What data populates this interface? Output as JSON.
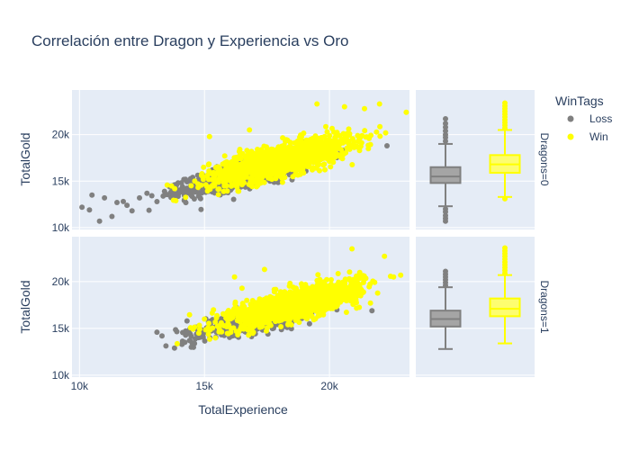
{
  "chart_data": {
    "type": "scatter",
    "title": "Correlación entre Dragon y Experiencia vs Oro",
    "xlabel": "TotalExperience",
    "ylabel": "TotalGold",
    "xlim": [
      9700,
      23200
    ],
    "ylim": [
      9800,
      24800
    ],
    "xticks": [
      {
        "v": 10000,
        "label": "10k"
      },
      {
        "v": 15000,
        "label": "15k"
      },
      {
        "v": 20000,
        "label": "20k"
      }
    ],
    "yticks": [
      {
        "v": 10000,
        "label": "10k"
      },
      {
        "v": 15000,
        "label": "15k"
      },
      {
        "v": 20000,
        "label": "20k"
      }
    ],
    "legend": {
      "title": "WinTags",
      "placement": "right",
      "items": [
        {
          "name": "Loss",
          "color": "#808080"
        },
        {
          "name": "Win",
          "color": "#ffff00"
        }
      ]
    },
    "facets": [
      {
        "label": "Dragons=0",
        "series": [
          {
            "name": "Loss",
            "color": "#808080",
            "fill": "#a5a5a5",
            "center": [
              16800,
              15900
            ],
            "sx": 1250,
            "sy": 1050,
            "rho": 0.8,
            "n": 1300,
            "box": {
              "q1": 14800,
              "median": 15500,
              "q3": 16500,
              "lower": 12300,
              "upper": 19000,
              "outliers_low": [
                10700,
                11000,
                11300,
                11700,
                12000
              ],
              "outliers_high": [
                19300,
                19700,
                20000,
                20400,
                20800,
                21200,
                21700
              ]
            },
            "extra": [
              [
                10100,
                12200
              ],
              [
                10400,
                11900
              ],
              [
                10500,
                13500
              ],
              [
                10800,
                10700
              ],
              [
                11000,
                13200
              ],
              [
                11300,
                11200
              ],
              [
                11500,
                12700
              ],
              [
                11900,
                12400
              ],
              [
                12100,
                11800
              ],
              [
                12400,
                13200
              ],
              [
                12700,
                13700
              ],
              [
                13100,
                12800
              ],
              [
                13400,
                13900
              ],
              [
                13700,
                14300
              ],
              [
                22300,
                18800
              ]
            ]
          },
          {
            "name": "Win",
            "color": "#ffff00",
            "fill": "#fdfd70",
            "center": [
              18000,
              17200
            ],
            "sx": 1400,
            "sy": 1250,
            "rho": 0.75,
            "n": 1300,
            "box": {
              "q1": 15900,
              "median": 16800,
              "q3": 17800,
              "lower": 13300,
              "upper": 20500,
              "outliers_low": [
                13100
              ],
              "outliers_high": [
                20700,
                21000,
                21300,
                21600,
                21900,
                22200,
                22500,
                22800,
                23100,
                23400
              ]
            },
            "extra": [
              [
                15200,
                19800
              ],
              [
                14900,
                15800
              ],
              [
                19500,
                23300
              ],
              [
                20600,
                23000
              ],
              [
                22000,
                23300
              ],
              [
                21400,
                22800
              ],
              [
                16800,
                20500
              ]
            ]
          }
        ]
      },
      {
        "label": "Dragons=1",
        "series": [
          {
            "name": "Loss",
            "color": "#808080",
            "fill": "#a5a5a5",
            "center": [
              17300,
              16200
            ],
            "sx": 1150,
            "sy": 950,
            "rho": 0.8,
            "n": 900,
            "box": {
              "q1": 15200,
              "median": 16000,
              "q3": 16900,
              "lower": 12800,
              "upper": 19400,
              "outliers_low": [],
              "outliers_high": [
                19600,
                19900,
                20200,
                20500,
                20800,
                21100
              ]
            },
            "extra": [
              [
                13100,
                14600
              ],
              [
                13300,
                14200
              ],
              [
                13800,
                12900
              ],
              [
                14100,
                13300
              ],
              [
                14400,
                13700
              ],
              [
                14300,
                15800
              ],
              [
                14600,
                13400
              ],
              [
                21700,
                16900
              ]
            ]
          },
          {
            "name": "Win",
            "color": "#ffff00",
            "fill": "#fdfd70",
            "center": [
              18600,
              17600
            ],
            "sx": 1300,
            "sy": 1150,
            "rho": 0.75,
            "n": 1500,
            "box": {
              "q1": 16300,
              "median": 17100,
              "q3": 18200,
              "lower": 13400,
              "upper": 20700,
              "outliers_low": [],
              "outliers_high": [
                20900,
                21200,
                21500,
                21800,
                22100,
                22400,
                22700,
                23000,
                23300,
                23600
              ]
            },
            "extra": [
              [
                15000,
                16000
              ],
              [
                15600,
                14900
              ],
              [
                16200,
                20500
              ],
              [
                20900,
                23500
              ],
              [
                22200,
                22700
              ],
              [
                16500,
                19300
              ],
              [
                17400,
                21300
              ]
            ]
          }
        ]
      }
    ]
  }
}
